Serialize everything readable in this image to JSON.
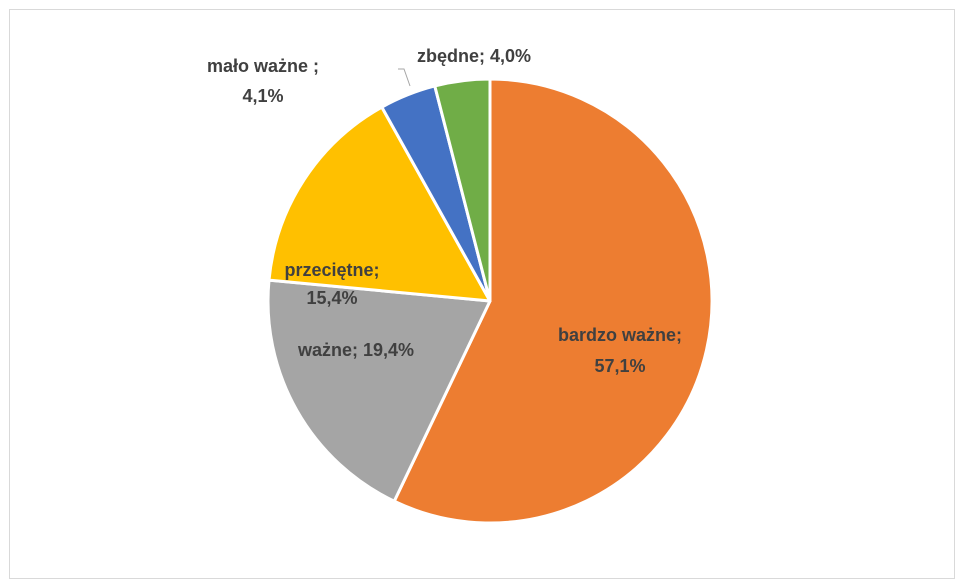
{
  "chart_data": {
    "type": "pie",
    "title": "",
    "slices": [
      {
        "label": "bardzo ważne",
        "value": 57.1,
        "value_label": "57,1%",
        "color": "#ED7D31"
      },
      {
        "label": "ważne",
        "value": 19.4,
        "value_label": "19,4%",
        "color": "#A5A5A5"
      },
      {
        "label": "przeciętne",
        "value": 15.4,
        "value_label": "15,4%",
        "color": "#FFC000"
      },
      {
        "label": "mało ważne",
        "value": 4.1,
        "value_label": "4,1%",
        "color": "#4472C4"
      },
      {
        "label": "zbędne",
        "value": 4.0,
        "value_label": "4,0%",
        "color": "#70AD47"
      }
    ],
    "label_text": {
      "bardzo_wazne_name": "bardzo ważne;",
      "bardzo_wazne_value": "57,1%",
      "wazne": "ważne; 19,4%",
      "przecietne_name": "przeciętne;",
      "przecietne_value": "15,4%",
      "malo_wazne_name": "mało ważne ;",
      "malo_wazne_value": "4,1%",
      "zbedne": "zbędne; 4,0%"
    },
    "start_angle": "12 o'clock",
    "direction": "clockwise",
    "legend": "none",
    "slice_border_color": "#FFFFFF"
  }
}
